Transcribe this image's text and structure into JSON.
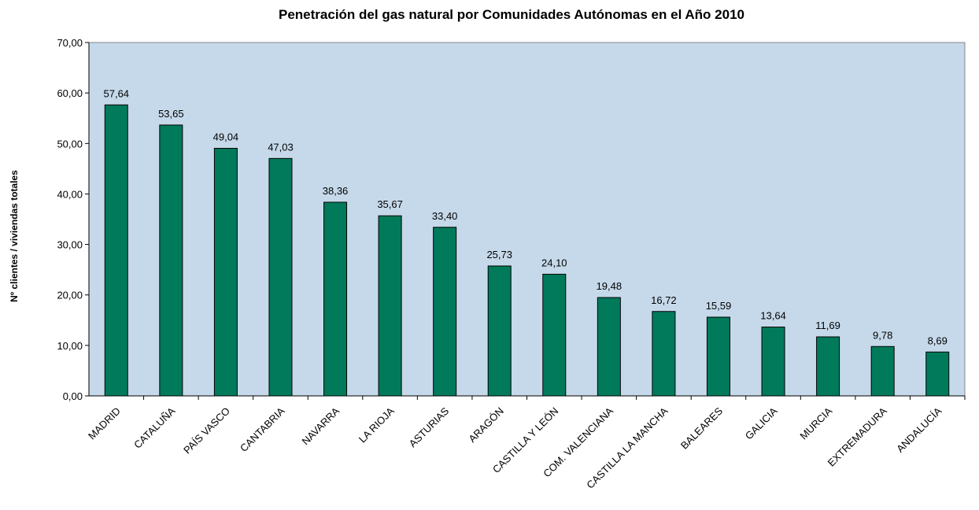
{
  "chart_data": {
    "type": "bar",
    "title": "Penetración del gas natural por Comunidades Autónomas en el Año 2010",
    "y_label": "Nº clientes / viviendas totales",
    "categories": [
      "MADRID",
      "CATALUÑA",
      "PAÍS VASCO",
      "CANTABRIA",
      "NAVARRA",
      "LA RIOJA",
      "ASTURIAS",
      "ARAGÓN",
      "CASTILLA Y LEÓN",
      "COM. VALENCIANA",
      "CASTILLA LA MANCHA",
      "BALEARES",
      "GALICIA",
      "MURCIA",
      "EXTREMADURA",
      "ANDALUCÍA"
    ],
    "values": [
      57.64,
      53.65,
      49.04,
      47.03,
      38.36,
      35.67,
      33.4,
      25.73,
      24.1,
      19.48,
      16.72,
      15.59,
      13.64,
      11.69,
      9.78,
      8.69
    ],
    "value_labels": [
      "57,64",
      "53,65",
      "49,04",
      "47,03",
      "38,36",
      "35,67",
      "33,40",
      "25,73",
      "24,10",
      "19,48",
      "16,72",
      "15,59",
      "13,64",
      "11,69",
      "9,78",
      "8,69"
    ],
    "color": "#007a5a",
    "plot_background": "#c5d9ea",
    "ylim": [
      0,
      70
    ],
    "yticks": [
      {
        "value": 0,
        "label": "0,00"
      },
      {
        "value": 10,
        "label": "10,00"
      },
      {
        "value": 20,
        "label": "20,00"
      },
      {
        "value": 30,
        "label": "30,00"
      },
      {
        "value": 40,
        "label": "40,00"
      },
      {
        "value": 50,
        "label": "50,00"
      },
      {
        "value": 60,
        "label": "60,00"
      },
      {
        "value": 70,
        "label": "70,00"
      }
    ],
    "grid": false
  }
}
